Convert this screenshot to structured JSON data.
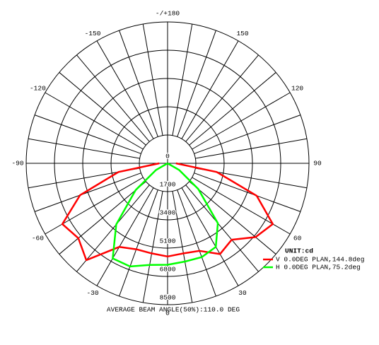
{
  "chart_data": {
    "type": "polar",
    "x": [
      -90,
      -80,
      -70,
      -60,
      -50,
      -40,
      -30,
      -20,
      -10,
      0,
      10,
      20,
      30,
      40,
      50,
      60,
      70,
      80,
      90
    ],
    "series": [
      {
        "name": "V 0.0DEG PLAN,144.8deg",
        "color": "#ff0000",
        "values": [
          500,
          3000,
          5600,
          7300,
          7000,
          7600,
          5800,
          5500,
          5500,
          5600,
          5500,
          5600,
          6300,
          6000,
          6900,
          7300,
          5700,
          3000,
          500
        ]
      },
      {
        "name": "H 0.0DEG PLAN,75.2deg",
        "color": "#00ff00",
        "values": [
          null,
          null,
          0,
          800,
          2500,
          4800,
          6600,
          6600,
          6200,
          6100,
          6000,
          6000,
          5800,
          4700,
          2400,
          800,
          0,
          null,
          null
        ]
      }
    ],
    "rlim": [
      0,
      8500
    ],
    "rticks": [
      0,
      1700,
      3400,
      5100,
      6800,
      8500
    ],
    "angle_ticks": [
      0,
      30,
      60,
      90,
      120,
      150,
      {
        "value": 180,
        "label": "-/+180"
      },
      -150,
      -120,
      -90,
      -60,
      -30
    ],
    "legend_title": "UNIT:cd",
    "footer": "AVERAGE BEAM ANGLE(50%):110.0 DEG",
    "legend": "lower right"
  }
}
